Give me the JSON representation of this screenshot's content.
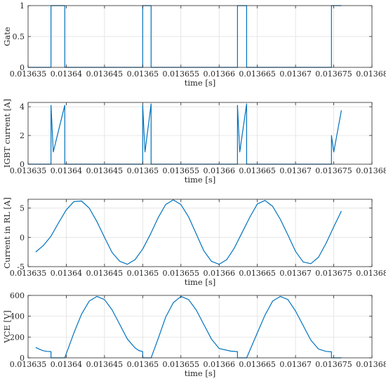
{
  "colors": {
    "series": "#0072BD",
    "grid": "#dcdcdc",
    "axis": "#262626"
  },
  "chart_data": [
    {
      "type": "line",
      "xlabel": "time [s]",
      "ylabel": "Gate",
      "xlim": [
        0.013635,
        0.01368
      ],
      "ylim": [
        0,
        1
      ],
      "xticks": [
        0.013635,
        0.01364,
        0.013645,
        0.01365,
        0.013655,
        0.01366,
        0.013665,
        0.01367,
        0.013675,
        0.01368
      ],
      "xtick_labels": [
        "0.013635",
        "0.01364",
        "0.013645",
        "0.01365",
        "0.013655",
        "0.01366",
        "0.013665",
        "0.01367",
        "0.013675",
        "0.01368"
      ],
      "yticks": [
        0,
        0.5,
        1
      ],
      "ytick_labels": [
        "0",
        "0.5",
        "1"
      ],
      "grid": true,
      "series": [
        {
          "x": [
            0.013635,
            0.013638,
            0.013638,
            0.0136398,
            0.0136398,
            0.01365,
            0.01365,
            0.0136511,
            0.0136511,
            0.0136624,
            0.0136624,
            0.0136636,
            0.0136636,
            0.0136747,
            0.0136747,
            0.013676
          ],
          "y": [
            0,
            0,
            1,
            1,
            0,
            0,
            1,
            1,
            0,
            0,
            1,
            1,
            0,
            0,
            1,
            1
          ]
        }
      ]
    },
    {
      "type": "line",
      "xlabel": "time [s]",
      "ylabel": "IGBT current [A]",
      "xlim": [
        0.013635,
        0.01368
      ],
      "ylim": [
        0,
        4.3
      ],
      "xticks": [
        0.013635,
        0.01364,
        0.013645,
        0.01365,
        0.013655,
        0.01366,
        0.013665,
        0.01367,
        0.013675,
        0.01368
      ],
      "xtick_labels": [
        "0.013635",
        "0.01364",
        "0.013645",
        "0.01365",
        "0.013655",
        "0.01366",
        "0.013665",
        "0.01367",
        "0.013675",
        "0.01368"
      ],
      "yticks": [
        0,
        2,
        4
      ],
      "ytick_labels": [
        "0",
        "2",
        "4"
      ],
      "grid": true,
      "series": [
        {
          "x": [
            0.013635,
            0.013638,
            0.013638,
            0.0136383,
            0.0136392,
            0.0136398,
            0.0136398,
            0.01365,
            0.01365,
            0.0136503,
            0.0136511,
            0.0136511,
            0.0136624,
            0.0136624,
            0.0136627,
            0.0136636,
            0.0136636,
            0.0136747,
            0.0136747,
            0.013675,
            0.013676
          ],
          "y": [
            0,
            0,
            4.1,
            0.85,
            2.8,
            4.1,
            0,
            0,
            4.1,
            0.85,
            4.2,
            0,
            0,
            4.1,
            0.85,
            4.2,
            0,
            0,
            2.0,
            0.85,
            3.75
          ]
        }
      ]
    },
    {
      "type": "line",
      "xlabel": "time [s]",
      "ylabel": "Current in RL [A]",
      "xlim": [
        0.013635,
        0.01368
      ],
      "ylim": [
        -5,
        6.5
      ],
      "xticks": [
        0.013635,
        0.01364,
        0.013645,
        0.01365,
        0.013655,
        0.01366,
        0.013665,
        0.01367,
        0.013675,
        0.01368
      ],
      "xtick_labels": [
        "0.013635",
        "0.01364",
        "0.013645",
        "0.01365",
        "0.013655",
        "0.01366",
        "0.013665",
        "0.01367",
        "0.013675",
        "0.01368"
      ],
      "yticks": [
        -5,
        0,
        5
      ],
      "ytick_labels": [
        "-5",
        "0",
        "5"
      ],
      "grid": true,
      "series": [
        {
          "x": [
            0.013636,
            0.013637,
            0.013638,
            0.013639,
            0.01364,
            0.013641,
            0.013642,
            0.013643,
            0.013644,
            0.013645,
            0.013646,
            0.013647,
            0.013648,
            0.013649,
            0.01365,
            0.013651,
            0.013652,
            0.013653,
            0.013654,
            0.013655,
            0.013656,
            0.013657,
            0.013658,
            0.013659,
            0.01366,
            0.013661,
            0.013662,
            0.013663,
            0.013664,
            0.013665,
            0.013666,
            0.013667,
            0.013668,
            0.013669,
            0.01367,
            0.013671,
            0.013672,
            0.013673,
            0.013674,
            0.013675,
            0.013676
          ],
          "y": [
            -2.5,
            -1.4,
            0.2,
            2.5,
            4.7,
            6.1,
            6.2,
            5.0,
            2.7,
            0.0,
            -2.6,
            -4.1,
            -4.6,
            -3.8,
            -2.0,
            0.5,
            3.3,
            5.6,
            6.4,
            5.6,
            3.5,
            0.6,
            -2.3,
            -4.1,
            -4.6,
            -3.8,
            -1.8,
            0.8,
            3.4,
            5.7,
            6.3,
            5.3,
            3.1,
            0.4,
            -2.4,
            -4.2,
            -4.5,
            -3.4,
            -1.0,
            1.8,
            4.5
          ]
        }
      ]
    },
    {
      "type": "line",
      "xlabel": "time [s]",
      "ylabel": "VCE [V]",
      "xlim": [
        0.013635,
        0.01368
      ],
      "ylim": [
        0,
        600
      ],
      "xticks": [
        0.013635,
        0.01364,
        0.013645,
        0.01365,
        0.013655,
        0.01366,
        0.013665,
        0.01367,
        0.013675,
        0.01368
      ],
      "xtick_labels": [
        "0.013635",
        "0.01364",
        "0.013645",
        "0.01365",
        "0.013655",
        "0.01366",
        "0.013665",
        "0.01367",
        "0.013675",
        "0.01368"
      ],
      "yticks": [
        0,
        200,
        400,
        600
      ],
      "ytick_labels": [
        "0",
        "200",
        "400",
        "600"
      ],
      "grid": true,
      "series": [
        {
          "x": [
            0.013636,
            0.0136365,
            0.013637,
            0.0136375,
            0.013638,
            0.013638,
            0.0136398,
            0.0136398,
            0.013641,
            0.013642,
            0.013643,
            0.013644,
            0.013645,
            0.013646,
            0.013647,
            0.013648,
            0.013649,
            0.0136495,
            0.01365,
            0.01365,
            0.0136511,
            0.0136511,
            0.013652,
            0.013653,
            0.013654,
            0.013655,
            0.013656,
            0.013657,
            0.013658,
            0.013659,
            0.01366,
            0.0136615,
            0.0136624,
            0.0136624,
            0.0136636,
            0.0136636,
            0.013665,
            0.013666,
            0.013667,
            0.013668,
            0.013669,
            0.01367,
            0.013671,
            0.013672,
            0.013673,
            0.013674,
            0.0136747,
            0.0136747,
            0.013676
          ],
          "y": [
            100,
            82,
            68,
            62,
            60,
            0,
            0,
            0,
            240,
            420,
            545,
            590,
            560,
            460,
            320,
            180,
            95,
            70,
            60,
            0,
            0,
            0,
            180,
            390,
            530,
            590,
            560,
            460,
            320,
            180,
            90,
            65,
            60,
            0,
            0,
            0,
            240,
            410,
            545,
            590,
            560,
            450,
            310,
            170,
            85,
            62,
            58,
            0,
            0
          ]
        }
      ]
    }
  ]
}
